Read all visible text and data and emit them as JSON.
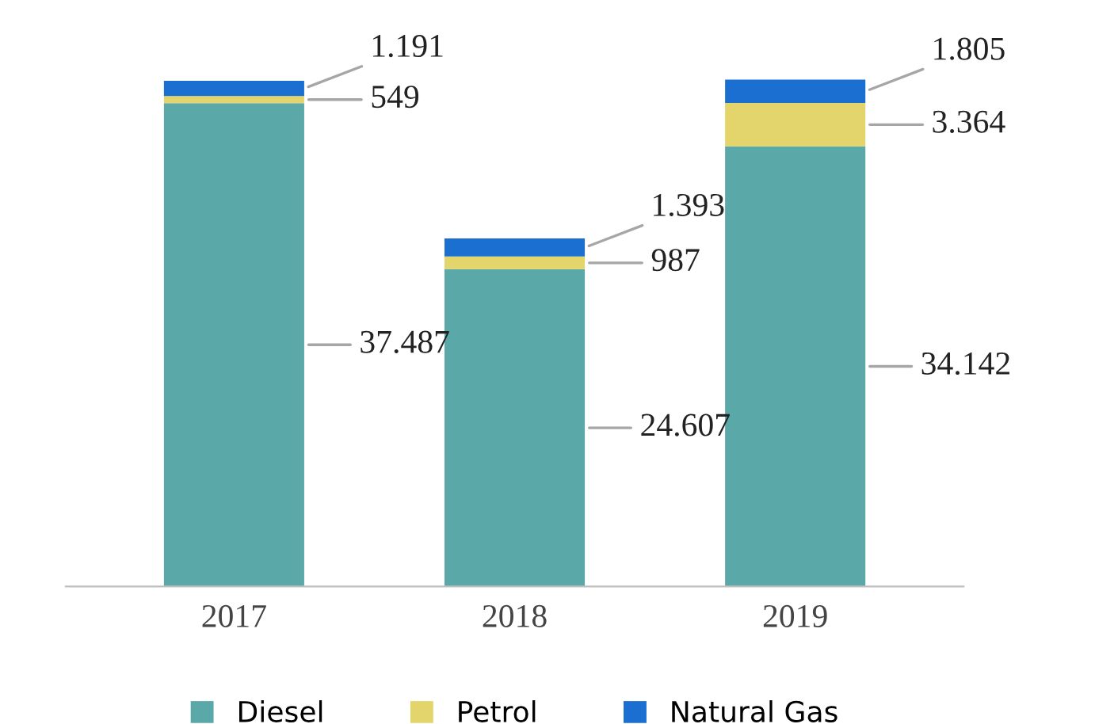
{
  "chart_data": {
    "type": "bar",
    "stacked": true,
    "categories": [
      "2017",
      "2018",
      "2019"
    ],
    "series": [
      {
        "name": "Diesel",
        "color": "#5ba8a8",
        "values": [
          37487,
          24607,
          34142
        ],
        "value_labels": [
          "37.487",
          "24.607",
          "34.142"
        ]
      },
      {
        "name": "Petrol",
        "color": "#e3d56b",
        "values": [
          549,
          987,
          3364
        ],
        "value_labels": [
          "549",
          "987",
          "3.364"
        ]
      },
      {
        "name": "Natural Gas",
        "color": "#1a6fd0",
        "values": [
          1191,
          1393,
          1805
        ],
        "value_labels": [
          "1.191",
          "1.393",
          "1.805"
        ]
      }
    ],
    "legend": "bottom"
  }
}
